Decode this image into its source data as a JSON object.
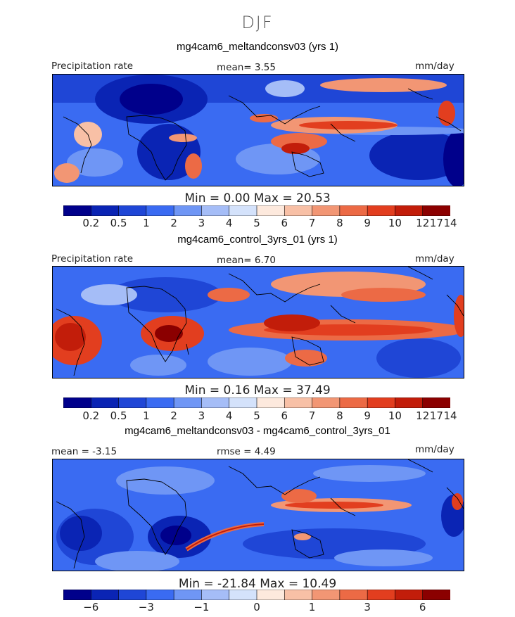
{
  "season": "DJF",
  "panels": [
    {
      "title": "mg4cam6_meltandconsv03 (yrs 1)",
      "left_label": "Precipitation rate",
      "center_label": "mean=   3.55",
      "right_label": "mm/day",
      "min_max": "Min =    0.00 Max =   20.53"
    },
    {
      "title": "mg4cam6_control_3yrs_01 (yrs 1)",
      "left_label": "Precipitation rate",
      "center_label": "mean=   6.70",
      "right_label": "mm/day",
      "min_max": "Min =    0.16 Max =   37.49"
    },
    {
      "title": "mg4cam6_meltandconsv03 - mg4cam6_control_3yrs_01",
      "left_label": "mean =   -3.15",
      "center_label": "rmse =   4.49",
      "right_label": "mm/day",
      "min_max": "Min = -21.84 Max =  10.49"
    }
  ],
  "colorbars": [
    {
      "ticks": [
        "0.2",
        "0.5",
        "1",
        "2",
        "3",
        "4",
        "5",
        "6",
        "7",
        "8",
        "9",
        "10",
        "12",
        "14",
        "17"
      ]
    },
    {
      "ticks": [
        "0.2",
        "0.5",
        "1",
        "2",
        "3",
        "4",
        "5",
        "6",
        "7",
        "8",
        "9",
        "10",
        "12",
        "14",
        "17"
      ]
    },
    {
      "ticks": [
        "−6",
        "−3",
        "−1",
        "0",
        "1",
        "3",
        "6"
      ]
    }
  ],
  "colors": {
    "palette": [
      "#00008b",
      "#0a24b4",
      "#1f46d6",
      "#3a6bf2",
      "#6f96f5",
      "#a5bdf7",
      "#d4e2fb",
      "#fde9dd",
      "#f8c0a6",
      "#f29674",
      "#ec6a45",
      "#e23e1f",
      "#c21d0a",
      "#8b0000"
    ]
  },
  "chart_data": [
    {
      "type": "heatmap",
      "title": "mg4cam6_meltandconsv03 (yrs 1)",
      "variable": "Precipitation rate",
      "units": "mm/day",
      "mean": 3.55,
      "min": 0.0,
      "max": 20.53,
      "levels": [
        0.2,
        0.5,
        1,
        2,
        3,
        4,
        5,
        6,
        7,
        8,
        9,
        10,
        12,
        14,
        17
      ]
    },
    {
      "type": "heatmap",
      "title": "mg4cam6_control_3yrs_01 (yrs 1)",
      "variable": "Precipitation rate",
      "units": "mm/day",
      "mean": 6.7,
      "min": 0.16,
      "max": 37.49,
      "levels": [
        0.2,
        0.5,
        1,
        2,
        3,
        4,
        5,
        6,
        7,
        8,
        9,
        10,
        12,
        14,
        17
      ]
    },
    {
      "type": "heatmap",
      "title": "mg4cam6_meltandconsv03 - mg4cam6_control_3yrs_01",
      "units": "mm/day",
      "mean": -3.15,
      "rmse": 4.49,
      "min": -21.84,
      "max": 10.49,
      "levels": [
        -6,
        -3,
        -1,
        0,
        1,
        3,
        6
      ]
    }
  ]
}
